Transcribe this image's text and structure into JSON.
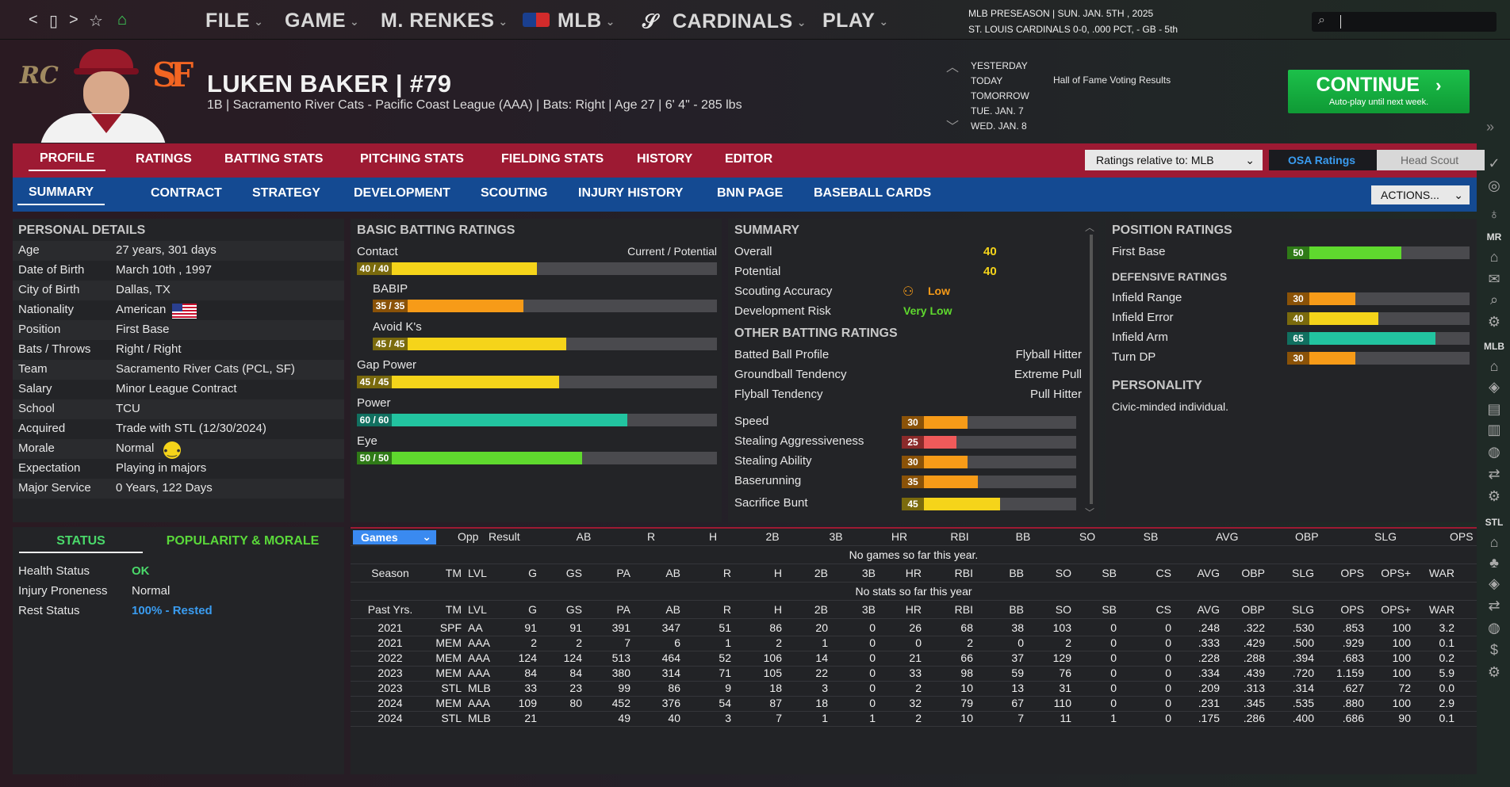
{
  "nav": {
    "back": "<",
    "square": "▯",
    "forward": ">",
    "star": "☆",
    "home": "⌂"
  },
  "menus": [
    {
      "label": "FILE"
    },
    {
      "label": "GAME"
    },
    {
      "label": "M. RENKES"
    },
    {
      "label": "MLB"
    },
    {
      "label": "CARDINALS"
    },
    {
      "label": "PLAY"
    }
  ],
  "header_info": {
    "line1": "MLB PRESEASON  |  SUN. JAN. 5TH , 2025",
    "line2": "ST. LOUIS CARDINALS  0-0, .000 PCT, - GB - 5th"
  },
  "player": {
    "name": "LUKEN BAKER  |  #79",
    "info": "1B | Sacramento River Cats - Pacific Coast League (AAA)  |  Bats: Right  |  Age 27  |  6' 4\" - 285 lbs",
    "team_logo": "RC",
    "org_logo": "SF"
  },
  "dates": [
    "YESTERDAY",
    "TODAY",
    "TOMORROW",
    "TUE. JAN. 7",
    "WED. JAN. 8"
  ],
  "event": "Hall of Fame Voting Results",
  "continue": {
    "title": "CONTINUE",
    "sub": "Auto-play until next week."
  },
  "tabs1": [
    "PROFILE",
    "RATINGS",
    "BATTING STATS",
    "PITCHING STATS",
    "FIELDING STATS",
    "HISTORY",
    "EDITOR"
  ],
  "tabs2": [
    "SUMMARY",
    "CONTRACT",
    "STRATEGY",
    "DEVELOPMENT",
    "SCOUTING",
    "INJURY HISTORY",
    "BNN PAGE",
    "BASEBALL CARDS"
  ],
  "ratings_relative": "Ratings relative to: MLB",
  "osa": "OSA Ratings",
  "head_scout": "Head Scout",
  "actions": "ACTIONS...",
  "personal": {
    "title": "PERSONAL DETAILS",
    "rows": [
      {
        "k": "Age",
        "v": "27 years, 301 days"
      },
      {
        "k": "Date of Birth",
        "v": "March 10th , 1997"
      },
      {
        "k": "City of Birth",
        "v": "Dallas, TX"
      },
      {
        "k": "Nationality",
        "v": "American"
      },
      {
        "k": "Position",
        "v": "First Base"
      },
      {
        "k": "Bats / Throws",
        "v": "Right / Right"
      },
      {
        "k": "Team",
        "v": "Sacramento River Cats (PCL, SF)"
      },
      {
        "k": "Salary",
        "v": "Minor League Contract"
      },
      {
        "k": "School",
        "v": "TCU"
      },
      {
        "k": "Acquired",
        "v": "Trade with STL (12/30/2024)"
      },
      {
        "k": "Morale",
        "v": "Normal"
      },
      {
        "k": "Expectation",
        "v": "Playing in majors"
      },
      {
        "k": "Major Service",
        "v": "0 Years, 122 Days"
      }
    ]
  },
  "status": {
    "tab1": "STATUS",
    "tab2": "POPULARITY & MORALE",
    "rows": [
      {
        "k": "Health Status",
        "v": "OK",
        "color": "#4ad86a"
      },
      {
        "k": "Injury Proneness",
        "v": "Normal",
        "color": "#e6e6e6"
      },
      {
        "k": "Rest Status",
        "v": "100% - Rested",
        "color": "#3a9cf0"
      }
    ]
  },
  "batting": {
    "title": "BASIC BATTING RATINGS",
    "header": "Current / Potential",
    "rows": [
      {
        "label": "Contact",
        "value": "40 / 40",
        "cur": 40,
        "color": "yel",
        "indent": false
      },
      {
        "label": "BABIP",
        "value": "35 / 35",
        "cur": 35,
        "color": "ora",
        "indent": true
      },
      {
        "label": "Avoid K's",
        "value": "45 / 45",
        "cur": 45,
        "color": "yel",
        "indent": true
      },
      {
        "label": "Gap Power",
        "value": "45 / 45",
        "cur": 45,
        "color": "yel",
        "indent": false
      },
      {
        "label": "Power",
        "value": "60 / 60",
        "cur": 60,
        "color": "tea",
        "indent": false
      },
      {
        "label": "Eye",
        "value": "50 / 50",
        "cur": 50,
        "color": "grn",
        "indent": false
      }
    ]
  },
  "summary": {
    "title": "SUMMARY",
    "overall_label": "Overall",
    "overall": "40",
    "potential_label": "Potential",
    "potential": "40",
    "scout_label": "Scouting Accuracy",
    "scout": "Low",
    "dev_label": "Development Risk",
    "dev": "Very Low",
    "other_title": "OTHER BATTING RATINGS",
    "text_rows": [
      {
        "k": "Batted Ball Profile",
        "v": "Flyball Hitter"
      },
      {
        "k": "Groundball Tendency",
        "v": "Extreme Pull"
      },
      {
        "k": "Flyball Tendency",
        "v": "Pull Hitter"
      }
    ],
    "bar_rows": [
      {
        "k": "Speed",
        "v": "30",
        "n": 30,
        "color": "ora"
      },
      {
        "k": "Stealing Aggressiveness",
        "v": "25",
        "n": 25,
        "color": "red"
      },
      {
        "k": "Stealing Ability",
        "v": "30",
        "n": 30,
        "color": "ora"
      },
      {
        "k": "Baserunning",
        "v": "35",
        "n": 35,
        "color": "ora"
      },
      {
        "k": "Sacrifice Bunt",
        "v": "45",
        "n": 45,
        "color": "yel"
      }
    ]
  },
  "position": {
    "title": "POSITION RATINGS",
    "first": {
      "k": "First Base",
      "v": "50",
      "n": 50,
      "color": "grn"
    },
    "def_title": "DEFENSIVE RATINGS",
    "rows": [
      {
        "k": "Infield Range",
        "v": "30",
        "n": 30,
        "color": "ora"
      },
      {
        "k": "Infield Error",
        "v": "40",
        "n": 40,
        "color": "yel"
      },
      {
        "k": "Infield Arm",
        "v": "65",
        "n": 65,
        "color": "tea"
      },
      {
        "k": "Turn DP",
        "v": "30",
        "n": 30,
        "color": "ora"
      }
    ],
    "personality_title": "PERSONALITY",
    "personality": "Civic-minded individual."
  },
  "games": {
    "select": "Games",
    "cols": [
      "Opp",
      "Result",
      "AB",
      "R",
      "H",
      "2B",
      "3B",
      "HR",
      "RBI",
      "BB",
      "SO",
      "SB",
      "AVG",
      "OBP",
      "SLG",
      "OPS"
    ],
    "empty": "No games so far this year."
  },
  "season": {
    "cols": [
      "Season",
      "TM",
      "LVL",
      "G",
      "GS",
      "PA",
      "AB",
      "R",
      "H",
      "2B",
      "3B",
      "HR",
      "RBI",
      "BB",
      "SO",
      "SB",
      "CS",
      "AVG",
      "OBP",
      "SLG",
      "OPS",
      "OPS+",
      "WAR"
    ],
    "empty": "No stats so far this year"
  },
  "past": {
    "cols": [
      "Past Yrs.",
      "TM",
      "LVL",
      "G",
      "GS",
      "PA",
      "AB",
      "R",
      "H",
      "2B",
      "3B",
      "HR",
      "RBI",
      "BB",
      "SO",
      "SB",
      "CS",
      "AVG",
      "OBP",
      "SLG",
      "OPS",
      "OPS+",
      "WAR"
    ],
    "rows": [
      [
        "2021",
        "SPF",
        "AA",
        "91",
        "91",
        "391",
        "347",
        "51",
        "86",
        "20",
        "0",
        "26",
        "68",
        "38",
        "103",
        "0",
        "0",
        ".248",
        ".322",
        ".530",
        ".853",
        "100",
        "3.2"
      ],
      [
        "2021",
        "MEM",
        "AAA",
        "2",
        "2",
        "7",
        "6",
        "1",
        "2",
        "1",
        "0",
        "0",
        "2",
        "0",
        "2",
        "0",
        "0",
        ".333",
        ".429",
        ".500",
        ".929",
        "100",
        "0.1"
      ],
      [
        "2022",
        "MEM",
        "AAA",
        "124",
        "124",
        "513",
        "464",
        "52",
        "106",
        "14",
        "0",
        "21",
        "66",
        "37",
        "129",
        "0",
        "0",
        ".228",
        ".288",
        ".394",
        ".683",
        "100",
        "0.2"
      ],
      [
        "2023",
        "MEM",
        "AAA",
        "84",
        "84",
        "380",
        "314",
        "71",
        "105",
        "22",
        "0",
        "33",
        "98",
        "59",
        "76",
        "0",
        "0",
        ".334",
        ".439",
        ".720",
        "1.159",
        "100",
        "5.9"
      ],
      [
        "2023",
        "STL",
        "MLB",
        "33",
        "23",
        "99",
        "86",
        "9",
        "18",
        "3",
        "0",
        "2",
        "10",
        "13",
        "31",
        "0",
        "0",
        ".209",
        ".313",
        ".314",
        ".627",
        "72",
        "0.0"
      ],
      [
        "2024",
        "MEM",
        "AAA",
        "109",
        "80",
        "452",
        "376",
        "54",
        "87",
        "18",
        "0",
        "32",
        "79",
        "67",
        "110",
        "0",
        "0",
        ".231",
        ".345",
        ".535",
        ".880",
        "100",
        "2.9"
      ],
      [
        "2024",
        "STL",
        "MLB",
        "21",
        "",
        "49",
        "40",
        "3",
        "7",
        "1",
        "1",
        "2",
        "10",
        "7",
        "11",
        "1",
        "0",
        ".175",
        ".286",
        ".400",
        ".686",
        "90",
        "0.1"
      ]
    ]
  },
  "side": {
    "mr": "MR",
    "mlb": "MLB",
    "stl": "STL"
  }
}
